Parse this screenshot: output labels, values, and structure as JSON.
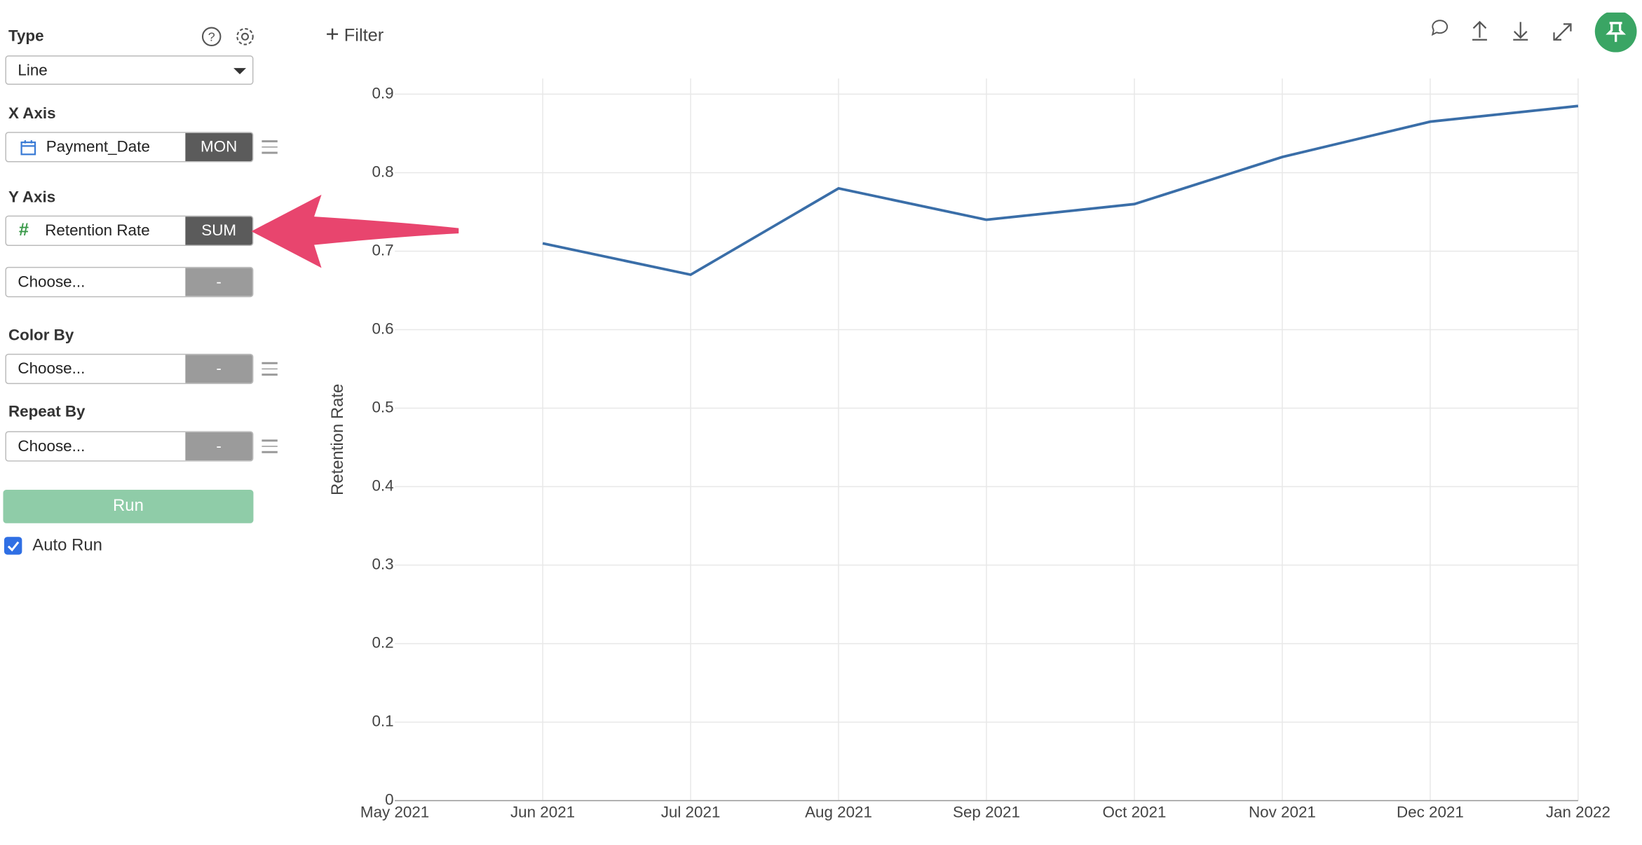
{
  "sidebar": {
    "type_label": "Type",
    "type_value": "Line",
    "x_axis_label": "X Axis",
    "x_field": "Payment_Date",
    "x_agg": "MON",
    "y_axis_label": "Y Axis",
    "y_field": "Retention Rate",
    "y_agg": "SUM",
    "y2_field": "Choose...",
    "y2_agg": "-",
    "color_by_label": "Color By",
    "color_by_field": "Choose...",
    "color_by_agg": "-",
    "repeat_by_label": "Repeat By",
    "repeat_by_field": "Choose...",
    "repeat_by_agg": "-",
    "run_button": "Run",
    "auto_run": "Auto Run"
  },
  "toolbar": {
    "filter": "Filter"
  },
  "chart_data": {
    "type": "line",
    "y_label": "Retention Rate",
    "categories": [
      "May 2021",
      "Jun 2021",
      "Jul 2021",
      "Aug 2021",
      "Sep 2021",
      "Oct 2021",
      "Nov 2021",
      "Dec 2021",
      "Jan 2022"
    ],
    "series": [
      {
        "name": "Retention Rate",
        "color": "#3a6ea8",
        "values": [
          null,
          0.71,
          0.67,
          0.78,
          0.74,
          0.76,
          0.82,
          0.865,
          0.885
        ]
      }
    ],
    "ylim": [
      0,
      0.92
    ],
    "yticks": [
      0,
      0.1,
      0.2,
      0.3,
      0.4,
      0.5,
      0.6,
      0.7,
      0.8,
      0.9
    ],
    "grid": true
  }
}
